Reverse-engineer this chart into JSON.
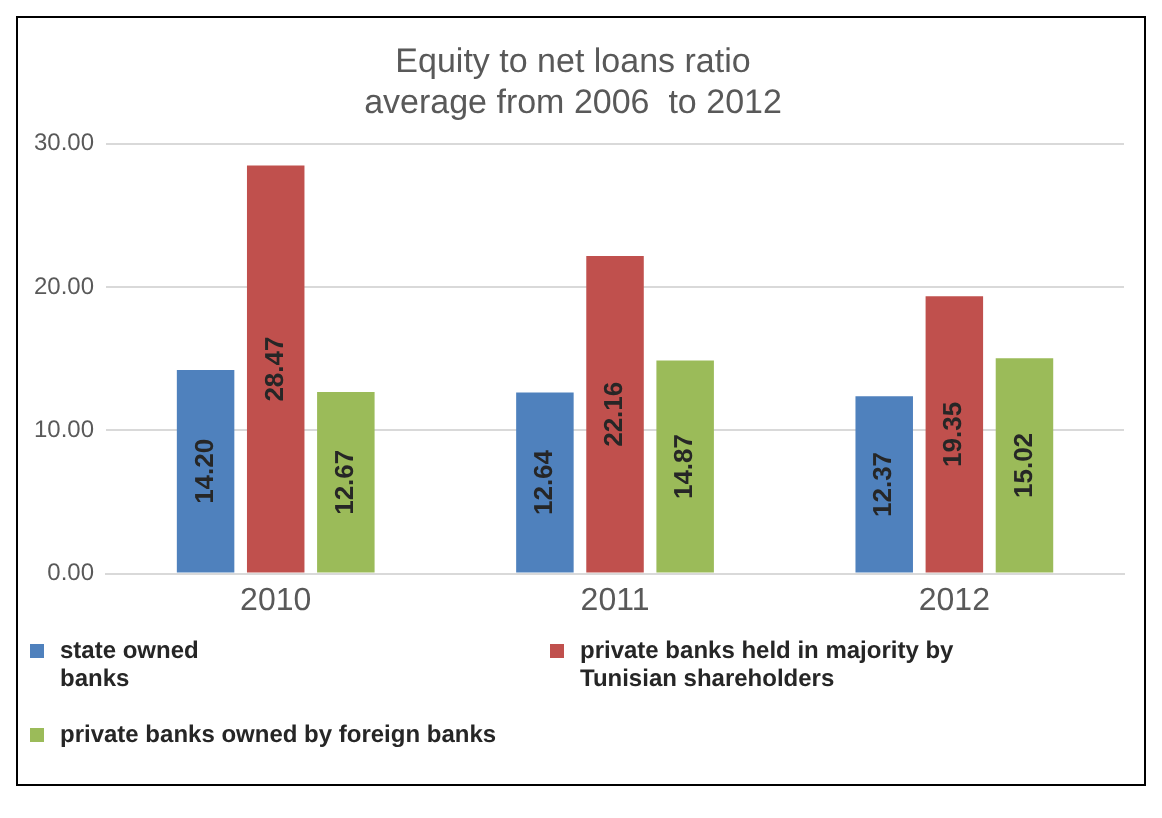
{
  "chart_data": {
    "type": "bar",
    "title": "Equity to net loans ratio\naverage from 2006  to 2012",
    "categories": [
      "2010",
      "2011",
      "2012"
    ],
    "series": [
      {
        "name": "state owned banks",
        "color": "#4f81bd",
        "values": [
          14.2,
          12.64,
          12.37
        ],
        "value_labels": [
          "14.20",
          "12.64",
          "12.37"
        ]
      },
      {
        "name": "private banks held in majority by Tunisian shareholders",
        "color": "#c0504d",
        "values": [
          28.47,
          22.16,
          19.35
        ],
        "value_labels": [
          "28.47",
          "22.16",
          "19.35"
        ]
      },
      {
        "name": "private banks owned by foreign banks",
        "color": "#9bbb59",
        "values": [
          12.67,
          14.87,
          15.02
        ],
        "value_labels": [
          "12.67",
          "14.87",
          "15.02"
        ]
      }
    ],
    "ylim": [
      0,
      30
    ],
    "yticks": [
      {
        "value": 0,
        "label": "0.00"
      },
      {
        "value": 10,
        "label": "10.00"
      },
      {
        "value": 20,
        "label": "20.00"
      },
      {
        "value": 30,
        "label": "30.00"
      }
    ],
    "grid": "y",
    "legend": "bottom"
  }
}
